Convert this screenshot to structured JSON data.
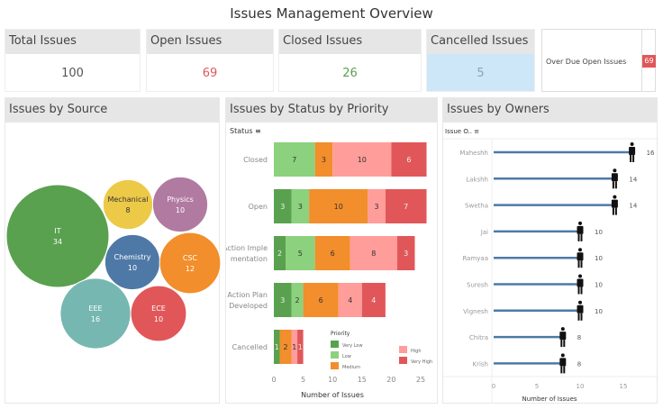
{
  "title": "Issues Management Overview",
  "kpis": [
    {
      "label": "Total Issues",
      "value": "100",
      "color": "#555555",
      "bg": "#ffffff"
    },
    {
      "label": "Open Issues",
      "value": "69",
      "color": "#e15759",
      "bg": "#ffffff"
    },
    {
      "label": "Closed Issues",
      "value": "26",
      "color": "#59a14f",
      "bg": "#ffffff"
    },
    {
      "label": "Cancelled Issues",
      "value": "5",
      "color": "#8aa4b8",
      "bg": "#cde6f8"
    }
  ],
  "overdue": {
    "label": "Over Due Open Issues",
    "value": "69",
    "color": "#e15759"
  },
  "panels": {
    "source": "Issues by Source",
    "status": "Issues by Status by Priority",
    "owners": "Issues by Owners"
  },
  "chart_data": [
    {
      "type": "bubble",
      "title": "Issues by Source",
      "items": [
        {
          "name": "IT",
          "value": 34,
          "color": "#59a14f"
        },
        {
          "name": "Mechanical",
          "value": 8,
          "color": "#edc948"
        },
        {
          "name": "Physics",
          "value": 10,
          "color": "#b07aa1"
        },
        {
          "name": "Chemistry",
          "value": 10,
          "color": "#4e79a7"
        },
        {
          "name": "CSC",
          "value": 12,
          "color": "#f28e2b"
        },
        {
          "name": "EEE",
          "value": 16,
          "color": "#76b7b2"
        },
        {
          "name": "ECE",
          "value": 10,
          "color": "#e15759"
        }
      ]
    },
    {
      "type": "bar",
      "stacked": true,
      "orientation": "horizontal",
      "title": "Issues by Status by Priority",
      "ylabel": "Status",
      "xlabel": "Number of Issues",
      "xlim": [
        0,
        27
      ],
      "xticks": [
        0,
        5,
        10,
        15,
        20,
        25
      ],
      "categories": [
        "Closed",
        "Open",
        "Action Implementation",
        "Action Plan Developed",
        "Cancelled"
      ],
      "legend_title": "Priority",
      "series": [
        {
          "name": "Very Low",
          "color": "#59a14f",
          "values": [
            0,
            3,
            2,
            3,
            1
          ]
        },
        {
          "name": "Low",
          "color": "#8cd17d",
          "values": [
            7,
            3,
            5,
            2,
            0
          ]
        },
        {
          "name": "Medium",
          "color": "#f28e2b",
          "values": [
            3,
            10,
            6,
            6,
            2
          ]
        },
        {
          "name": "High",
          "color": "#ff9d9a",
          "values": [
            10,
            3,
            8,
            4,
            1
          ]
        },
        {
          "name": "Very High",
          "color": "#e15759",
          "values": [
            6,
            7,
            3,
            4,
            1
          ]
        }
      ]
    },
    {
      "type": "lollipop",
      "title": "Issues by Owners",
      "ylabel": "Issue O..",
      "xlabel": "Number of Issues",
      "xticks": [
        0,
        5,
        10,
        15
      ],
      "xlim": [
        0,
        19
      ],
      "categories": [
        "Maheshh",
        "Lakshh",
        "Swetha",
        "Jai",
        "Ramyaa",
        "Suresh",
        "Vignesh",
        "Chitra",
        "Krish"
      ],
      "values": [
        16,
        14,
        14,
        10,
        10,
        10,
        10,
        8,
        8
      ],
      "line_color": "#4e79a7"
    }
  ]
}
